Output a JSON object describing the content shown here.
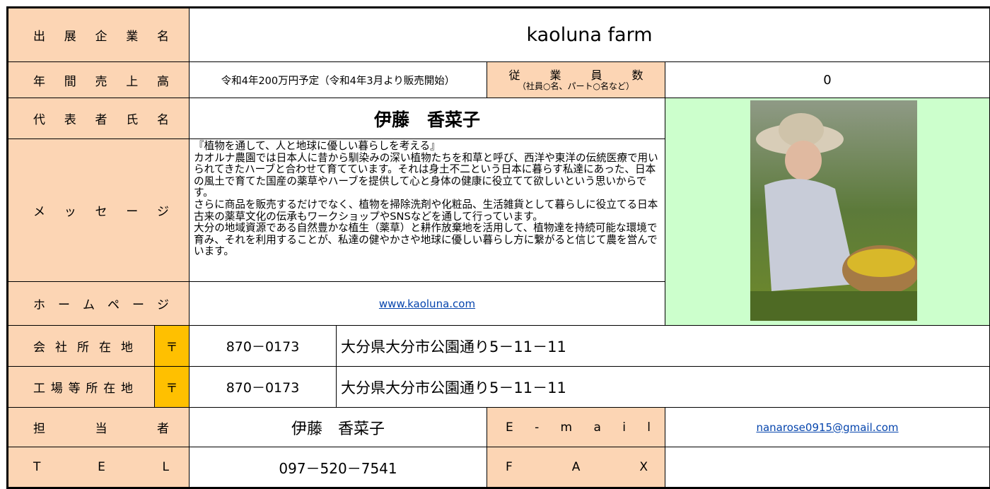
{
  "company": {
    "label": "出 展 企 業 名",
    "value": "kaoluna farm"
  },
  "sales": {
    "label": "年 間 売 上 高",
    "value": "令和4年200万円予定（令和4年3月より販売開始）"
  },
  "employees": {
    "label": "従 業 員 数",
    "note": "（社員○名、パート○名など）",
    "value": "0"
  },
  "representative": {
    "label": "代 表 者 氏 名",
    "value": "伊藤　香菜子"
  },
  "message": {
    "label": "メ ッ セ ー ジ",
    "paragraphs": [
      "『植物を通して、人と地球に優しい暮らしを考える』",
      "カオルナ農園では日本人に昔から馴染みの深い植物たちを和草と呼び、西洋や東洋の伝統医療で用いられてきたハーブと合わせて育てています。それは身土不二という日本に暮らす私達にあった、日本の風土で育てた国産の薬草やハーブを提供して心と身体の健康に役立てて欲しいという思いからです。",
      "さらに商品を販売するだけでなく、植物を掃除洗剤や化粧品、生活雑貨として暮らしに役立てる日本古来の薬草文化の伝承もワークショップやSNSなどを通して行っています。",
      "大分の地域資源である自然豊かな植生（薬草）と耕作放棄地を活用して、植物達を持続可能な環境で育み、それを利用することが、私達の健やかさや地球に優しい暮らし方に繋がると信じて農を営んでいます。"
    ]
  },
  "homepage": {
    "label": "ホ ー ム ペ ー ジ",
    "url": "www.kaoluna.com"
  },
  "office": {
    "label": "会 社 所 在 地",
    "postal_mark": "〒",
    "postal_code": "870－0173",
    "address": "大分県大分市公園通り5－11－11"
  },
  "factory": {
    "label": "工 場 等 所 在 地",
    "postal_mark": "〒",
    "postal_code": "870－0173",
    "address": "大分県大分市公園通り5－11－11"
  },
  "contact": {
    "label": "担 当 者",
    "value": "伊藤　香菜子",
    "email_label": "E - m a i l",
    "email": "nanarose0915@gmail.com"
  },
  "tel": {
    "label": "T E L",
    "value": "097－520－7541",
    "fax_label": "F A X"
  }
}
